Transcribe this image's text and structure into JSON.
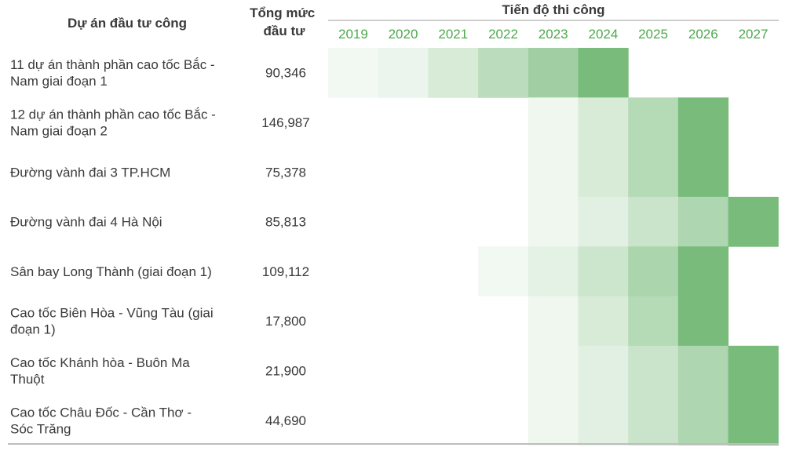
{
  "header": {
    "project_col": "Dự án đầu tư công",
    "investment_col": [
      "Tổng mức",
      "đầu tư"
    ],
    "timeline_col": "Tiến độ thi công"
  },
  "chart_data": {
    "type": "heatmap",
    "title": "",
    "years": [
      "2019",
      "2020",
      "2021",
      "2022",
      "2023",
      "2024",
      "2025",
      "2026",
      "2027"
    ],
    "rows": [
      {
        "name": [
          "11 dự án thành phần cao tốc Bắc -",
          "Nam giai đoạn 1"
        ],
        "investment": "90,346",
        "intensity": [
          0.1,
          0.14,
          0.3,
          0.5,
          0.7,
          1.0,
          0,
          0,
          0
        ]
      },
      {
        "name": [
          "12 dự án thành phần cao tốc Bắc -",
          "Nam giai đoạn 2"
        ],
        "investment": "146,987",
        "intensity": [
          0,
          0,
          0,
          0,
          0.12,
          0.3,
          0.55,
          1.0,
          0
        ]
      },
      {
        "name": [
          "Đường vành đai 3 TP.HCM"
        ],
        "investment": "75,378",
        "intensity": [
          0,
          0,
          0,
          0,
          0.12,
          0.3,
          0.55,
          1.0,
          0
        ]
      },
      {
        "name": [
          "Đường vành đai 4 Hà Nội"
        ],
        "investment": "85,813",
        "intensity": [
          0,
          0,
          0,
          0,
          0.12,
          0.22,
          0.4,
          0.6,
          1.0
        ]
      },
      {
        "name": [
          "Sân bay Long Thành (giai đoạn 1)"
        ],
        "investment": "109,112",
        "intensity": [
          0,
          0,
          0,
          0.1,
          0.2,
          0.38,
          0.62,
          1.0,
          0
        ]
      },
      {
        "name": [
          "Cao tốc Biên Hòa - Vũng Tàu (giai",
          "đoạn 1)"
        ],
        "investment": "17,800",
        "intensity": [
          0,
          0,
          0,
          0,
          0.12,
          0.3,
          0.55,
          1.0,
          0
        ]
      },
      {
        "name": [
          "Cao tốc Khánh hòa - Buôn Ma",
          "Thuột"
        ],
        "investment": "21,900",
        "intensity": [
          0,
          0,
          0,
          0,
          0.12,
          0.22,
          0.4,
          0.6,
          1.0
        ]
      },
      {
        "name": [
          "Cao tốc Châu Đốc - Cần Thơ -",
          "Sóc Trăng"
        ],
        "investment": "44,690",
        "intensity": [
          0,
          0,
          0,
          0,
          0.12,
          0.22,
          0.4,
          0.6,
          1.0
        ]
      }
    ],
    "colors": {
      "full": "#78bb7b",
      "light": "#ffffff",
      "year_text": "#4caa4c",
      "rule": "#bdbdbd"
    }
  }
}
